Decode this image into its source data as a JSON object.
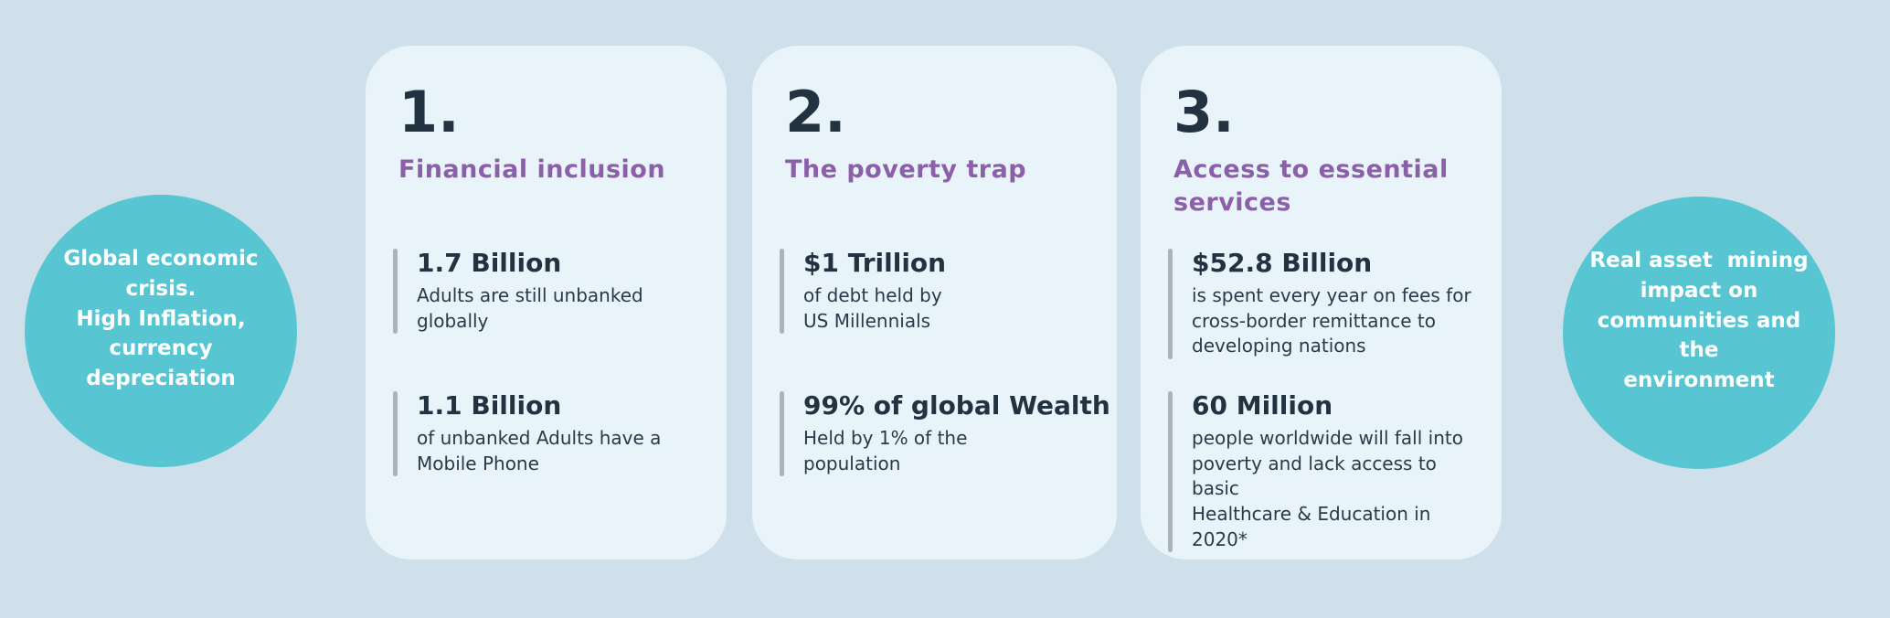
{
  "colors": {
    "background": "#cfe0eb",
    "card_background": "#e8f3fa",
    "accent_teal": "#58c6d2",
    "accent_purple": "#8c60a8",
    "text_dark": "#233240",
    "accent_bar_gray": "#a9b3bb",
    "circle_text": "#ffffff"
  },
  "left_circle": {
    "text": "Global economic\ncrisis.\nHigh Inflation,\ncurrency\ndepreciation"
  },
  "right_circle": {
    "text": "Real asset  mining\nimpact on\ncommunities and the\nenvironment"
  },
  "cards": [
    {
      "number": "1.",
      "title": "Financial inclusion",
      "stats": [
        {
          "value": "1.7 Billion",
          "description": "Adults are still unbanked\nglobally"
        },
        {
          "value": "1.1 Billion",
          "description": "of unbanked Adults have a\nMobile Phone"
        }
      ]
    },
    {
      "number": "2.",
      "title": "The poverty trap",
      "stats": [
        {
          "value": "$1 Trillion",
          "description": "of debt held by\nUS Millennials"
        },
        {
          "value": "99% of global Wealth",
          "description": "Held by 1% of the\npopulation"
        }
      ]
    },
    {
      "number": "3.",
      "title": "Access to essential\nservices",
      "stats": [
        {
          "value": "$52.8 Billion",
          "description": "is spent every year on fees for\ncross-border remittance to\ndeveloping nations"
        },
        {
          "value": "60 Million",
          "description": "people worldwide will fall into\npoverty and lack access to basic\nHealthcare & Education in 2020*"
        }
      ]
    }
  ]
}
